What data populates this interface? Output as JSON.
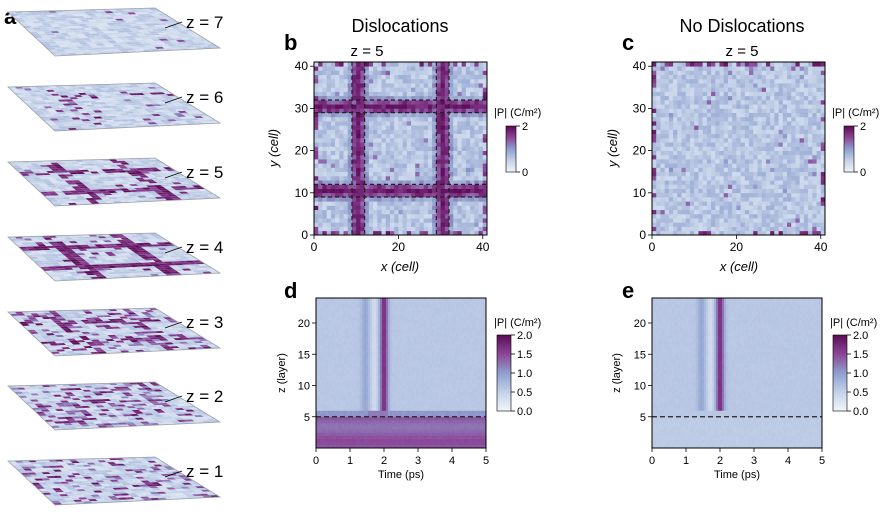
{
  "panel_labels": {
    "a": "a",
    "b": "b",
    "c": "c",
    "d": "d",
    "e": "e"
  },
  "titles": {
    "left": "Dislocations",
    "right": "No Dislocations"
  },
  "colors": {
    "low": "#f2f5fb",
    "mid": "#b5c6e0",
    "high": "#6a1463",
    "dash": "#222222"
  },
  "chart_data": [
    {
      "id": "a",
      "type": "heatmap",
      "layers": [
        {
          "label": "z = 7",
          "z": 7,
          "dislocation_lines": false,
          "density": 0.02
        },
        {
          "label": "z = 6",
          "z": 6,
          "dislocation_lines": true,
          "intensity": 0.15,
          "density": 0.05
        },
        {
          "label": "z = 5",
          "z": 5,
          "dislocation_lines": true,
          "intensity": 0.7,
          "density": 0.06
        },
        {
          "label": "z = 4",
          "z": 4,
          "dislocation_lines": true,
          "intensity": 0.9,
          "density": 0.08
        },
        {
          "label": "z = 3",
          "z": 3,
          "dislocation_lines": true,
          "intensity": 0.5,
          "density": 0.25
        },
        {
          "label": "z = 2",
          "z": 2,
          "dislocation_lines": false,
          "density": 0.32
        },
        {
          "label": "z = 1",
          "z": 1,
          "dislocation_lines": false,
          "density": 0.22
        }
      ]
    },
    {
      "id": "b",
      "type": "heatmap",
      "subtitle": "z  = 5",
      "xlabel": "x (cell)",
      "ylabel": "y (cell)",
      "xlim": [
        0,
        41
      ],
      "ylim": [
        0,
        41
      ],
      "xticks": [
        "0",
        "20",
        "40"
      ],
      "yticks": [
        "0",
        "10",
        "20",
        "30",
        "40"
      ],
      "dislocation_centers": [
        10,
        30
      ],
      "dashed_lines": [
        9,
        12,
        29,
        32
      ],
      "colorbar": {
        "label": "|P|  (C/m²)",
        "min": 0,
        "max": 2,
        "ticks": [
          "0",
          "2"
        ]
      }
    },
    {
      "id": "c",
      "type": "heatmap",
      "subtitle": "z  = 5",
      "xlabel": "x (cell)",
      "ylabel": "y (cell)",
      "xlim": [
        0,
        41
      ],
      "ylim": [
        0,
        41
      ],
      "xticks": [
        "0",
        "20",
        "40"
      ],
      "yticks": [
        "0",
        "10",
        "20",
        "30",
        "40"
      ],
      "colorbar": {
        "label": "|P|  (C/m²)",
        "min": 0,
        "max": 2,
        "ticks": [
          "0",
          "2"
        ]
      }
    },
    {
      "id": "d",
      "type": "heatmap",
      "xlabel": "Time (ps)",
      "ylabel": "z (layer)",
      "xlim": [
        0,
        5
      ],
      "ylim": [
        0,
        24
      ],
      "xticks": [
        "0",
        "1",
        "2",
        "3",
        "4",
        "5"
      ],
      "yticks": [
        "5",
        "10",
        "15",
        "20"
      ],
      "dashed_line_z": 5,
      "colorbar": {
        "label": "|P|  (C/m²)",
        "min": 0,
        "max": 2,
        "ticks": [
          "0.0",
          "0.5",
          "1.0",
          "1.5",
          "2.0"
        ]
      }
    },
    {
      "id": "e",
      "type": "heatmap",
      "xlabel": "Time (ps)",
      "ylabel": "z (layer)",
      "xlim": [
        0,
        5
      ],
      "ylim": [
        0,
        24
      ],
      "xticks": [
        "0",
        "1",
        "2",
        "3",
        "4",
        "5"
      ],
      "yticks": [
        "5",
        "10",
        "15",
        "20"
      ],
      "dashed_line_z": 5,
      "colorbar": {
        "label": "|P|  (C/m²)",
        "min": 0,
        "max": 2,
        "ticks": [
          "0.0",
          "0.5",
          "1.0",
          "1.5",
          "2.0"
        ]
      }
    }
  ]
}
